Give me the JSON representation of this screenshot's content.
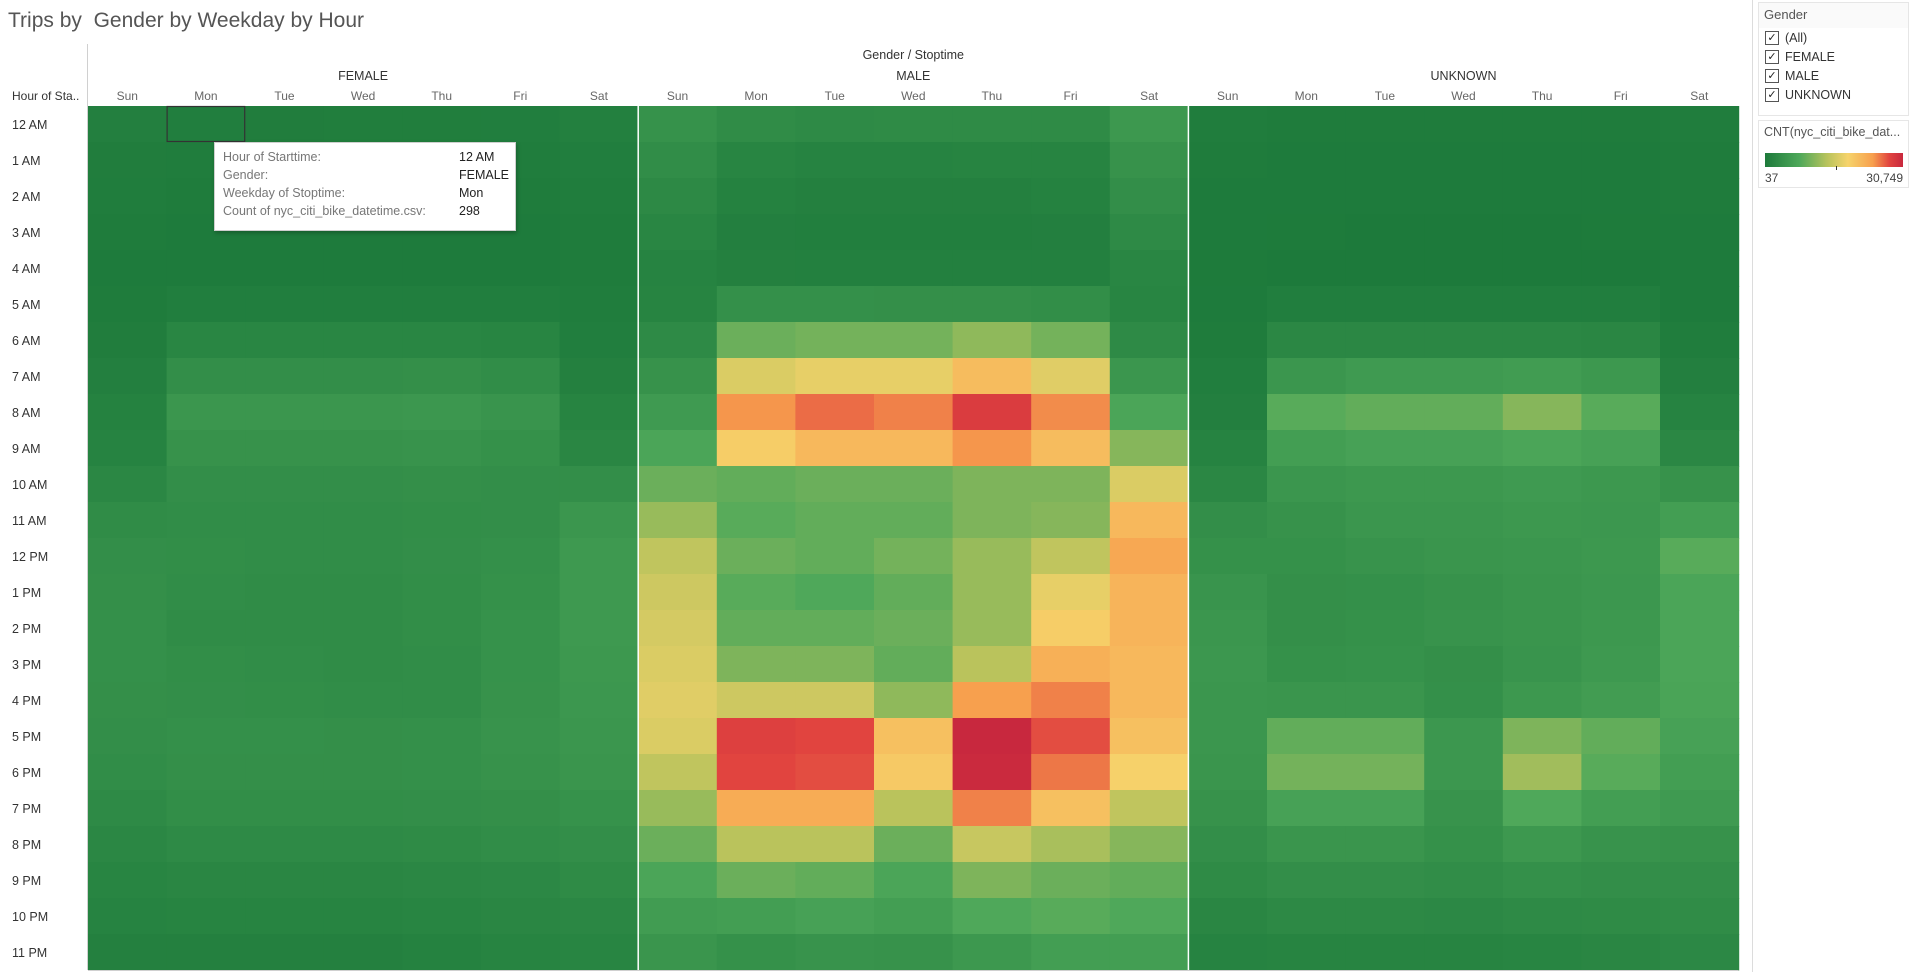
{
  "title": "Trips by  Gender by Weekday by Hour",
  "column_title": "Gender / Stoptime",
  "row_header": "Hour of Sta..",
  "groups": [
    "FEMALE",
    "MALE",
    "UNKNOWN"
  ],
  "weekdays": [
    "Sun",
    "Mon",
    "Tue",
    "Wed",
    "Thu",
    "Fri",
    "Sat"
  ],
  "hours": [
    "12 AM",
    "1 AM",
    "2 AM",
    "3 AM",
    "4 AM",
    "5 AM",
    "6 AM",
    "7 AM",
    "8 AM",
    "9 AM",
    "10 AM",
    "11 AM",
    "12 PM",
    "1 PM",
    "2 PM",
    "3 PM",
    "4 PM",
    "5 PM",
    "6 PM",
    "7 PM",
    "8 PM",
    "9 PM",
    "10 PM",
    "11 PM"
  ],
  "filter": {
    "title": "Gender",
    "items": [
      {
        "label": "(All)",
        "checked": true
      },
      {
        "label": "FEMALE",
        "checked": true
      },
      {
        "label": "MALE",
        "checked": true
      },
      {
        "label": "UNKNOWN",
        "checked": true
      }
    ]
  },
  "legend": {
    "title": "CNT(nyc_citi_bike_dat...",
    "min": "37",
    "max": "30,749"
  },
  "tooltip": {
    "rows": [
      {
        "label": "Hour of Starttime:",
        "value": "12 AM"
      },
      {
        "label": "Gender:",
        "value": "FEMALE"
      },
      {
        "label": "Weekday of Stoptime:",
        "value": "Mon"
      },
      {
        "label": "Count of nyc_citi_bike_datetime.csv:",
        "value": "298"
      }
    ]
  },
  "colors": {
    "scale": [
      "#1d7a3b",
      "#4ea85a",
      "#b8c35c",
      "#f6d36b",
      "#f7a04e",
      "#e1443f",
      "#c8283e"
    ],
    "divider": "#ffffff",
    "highlight_border": "#333333"
  },
  "chart_data": {
    "type": "heatmap",
    "title": "Trips by  Gender by Weekday by Hour",
    "x_title": "Gender / Stoptime",
    "y_title": "Hour of Sta..",
    "color_range": [
      37,
      30749
    ],
    "matrix_note_order": "rows = hours 12 AM..11 PM; columns = FEMALE Sun..Sat, MALE Sun..Sat, UNKNOWN Sun..Sat",
    "values": [
      [
        400,
        298,
        250,
        260,
        270,
        280,
        450,
        2400,
        1700,
        1500,
        1600,
        1600,
        1600,
        3200,
        200,
        150,
        130,
        140,
        140,
        140,
        200
      ],
      [
        250,
        200,
        180,
        190,
        190,
        200,
        300,
        1800,
        900,
        700,
        700,
        800,
        800,
        2500,
        130,
        100,
        90,
        90,
        90,
        100,
        150
      ],
      [
        180,
        150,
        120,
        130,
        130,
        130,
        220,
        1400,
        600,
        500,
        500,
        500,
        600,
        2000,
        100,
        80,
        70,
        70,
        70,
        80,
        120
      ],
      [
        130,
        100,
        90,
        90,
        90,
        100,
        150,
        1000,
        400,
        350,
        350,
        350,
        400,
        1500,
        80,
        60,
        50,
        50,
        50,
        60,
        90
      ],
      [
        100,
        90,
        80,
        80,
        80,
        90,
        120,
        700,
        500,
        450,
        450,
        450,
        450,
        1000,
        60,
        50,
        40,
        37,
        40,
        50,
        70
      ],
      [
        150,
        300,
        300,
        300,
        300,
        300,
        180,
        800,
        2200,
        2200,
        2100,
        2100,
        1900,
        900,
        80,
        300,
        300,
        300,
        300,
        300,
        100
      ],
      [
        250,
        1000,
        1000,
        1000,
        1000,
        900,
        300,
        1500,
        7000,
        7500,
        7500,
        9000,
        7500,
        1500,
        150,
        1200,
        1200,
        1200,
        1200,
        1100,
        200
      ],
      [
        400,
        2000,
        2000,
        2000,
        2100,
        1800,
        500,
        2500,
        14000,
        15000,
        15000,
        19000,
        14500,
        3000,
        300,
        3000,
        3500,
        3500,
        3700,
        3200,
        400
      ],
      [
        600,
        3000,
        3000,
        3000,
        3100,
        2700,
        800,
        3500,
        23000,
        25000,
        24000,
        28000,
        23500,
        5000,
        400,
        6000,
        6500,
        6500,
        8500,
        6000,
        700
      ],
      [
        700,
        2500,
        2500,
        2500,
        2600,
        2300,
        1100,
        5000,
        17000,
        19500,
        19500,
        23000,
        19000,
        8500,
        700,
        4000,
        4500,
        4500,
        5000,
        4500,
        1200
      ],
      [
        1200,
        2000,
        2000,
        2000,
        2100,
        2000,
        2000,
        7000,
        6500,
        7000,
        7000,
        8000,
        8000,
        14000,
        1200,
        3000,
        3200,
        3200,
        3500,
        3200,
        2500
      ],
      [
        1700,
        1800,
        1800,
        1800,
        1900,
        2000,
        3000,
        9500,
        6000,
        6500,
        6500,
        8000,
        8500,
        19500,
        2000,
        2500,
        3000,
        3000,
        3200,
        3100,
        4000
      ],
      [
        2000,
        1900,
        1800,
        1800,
        2000,
        2200,
        3300,
        12000,
        7000,
        6500,
        7500,
        9500,
        12000,
        21500,
        2300,
        2300,
        2600,
        2800,
        3000,
        3200,
        6000
      ],
      [
        2100,
        1800,
        1700,
        1700,
        1900,
        2300,
        3300,
        13000,
        6000,
        5500,
        6500,
        9500,
        15000,
        20000,
        2700,
        2100,
        2200,
        2500,
        2800,
        3100,
        5000
      ],
      [
        2200,
        1700,
        1700,
        1700,
        1900,
        2400,
        3300,
        13500,
        6500,
        6500,
        7000,
        9500,
        17000,
        20000,
        3000,
        2100,
        2300,
        2600,
        2800,
        3200,
        5000
      ],
      [
        2200,
        1900,
        1800,
        1700,
        1800,
        2400,
        3200,
        14000,
        8000,
        8000,
        6500,
        11500,
        20500,
        19500,
        3100,
        2300,
        2400,
        2100,
        2700,
        3400,
        5000
      ],
      [
        2100,
        2000,
        1900,
        1800,
        1800,
        2500,
        3100,
        14500,
        13000,
        13000,
        9000,
        22500,
        24000,
        19500,
        3000,
        2800,
        2800,
        2200,
        3200,
        3800,
        4900
      ],
      [
        2000,
        2200,
        2200,
        2100,
        2200,
        2600,
        3000,
        14000,
        27500,
        27000,
        18500,
        30749,
        26500,
        18500,
        3000,
        6500,
        6500,
        3100,
        8000,
        6500,
        4500
      ],
      [
        1800,
        2100,
        2100,
        2100,
        2200,
        2500,
        2800,
        12000,
        27000,
        26500,
        17500,
        30500,
        24500,
        16500,
        2800,
        7500,
        7500,
        3100,
        10000,
        6000,
        4000
      ],
      [
        1500,
        1900,
        1900,
        1900,
        2000,
        2100,
        2400,
        9500,
        21000,
        21000,
        11500,
        24000,
        18500,
        12000,
        2500,
        4500,
        4500,
        2600,
        5500,
        4000,
        3500
      ],
      [
        1200,
        1500,
        1500,
        1500,
        1600,
        1800,
        2000,
        7000,
        11500,
        11500,
        7000,
        12500,
        10500,
        8500,
        2000,
        2800,
        2800,
        2300,
        3200,
        2600,
        2500
      ],
      [
        900,
        1100,
        1100,
        1100,
        1200,
        1300,
        1600,
        5000,
        7000,
        6500,
        5000,
        8000,
        7000,
        6500,
        1600,
        2000,
        2000,
        1800,
        2200,
        2000,
        2000
      ],
      [
        700,
        800,
        800,
        800,
        900,
        1100,
        1200,
        3700,
        4000,
        4500,
        4000,
        5500,
        6000,
        5500,
        1100,
        1400,
        1400,
        1300,
        1500,
        1600,
        1700
      ],
      [
        500,
        500,
        500,
        500,
        600,
        800,
        900,
        2800,
        2300,
        2600,
        2500,
        3200,
        4000,
        4000,
        700,
        800,
        800,
        800,
        900,
        1100,
        1300
      ]
    ],
    "highlight": {
      "hour": "12 AM",
      "group": "FEMALE",
      "weekday": "Mon",
      "value": 298
    }
  }
}
